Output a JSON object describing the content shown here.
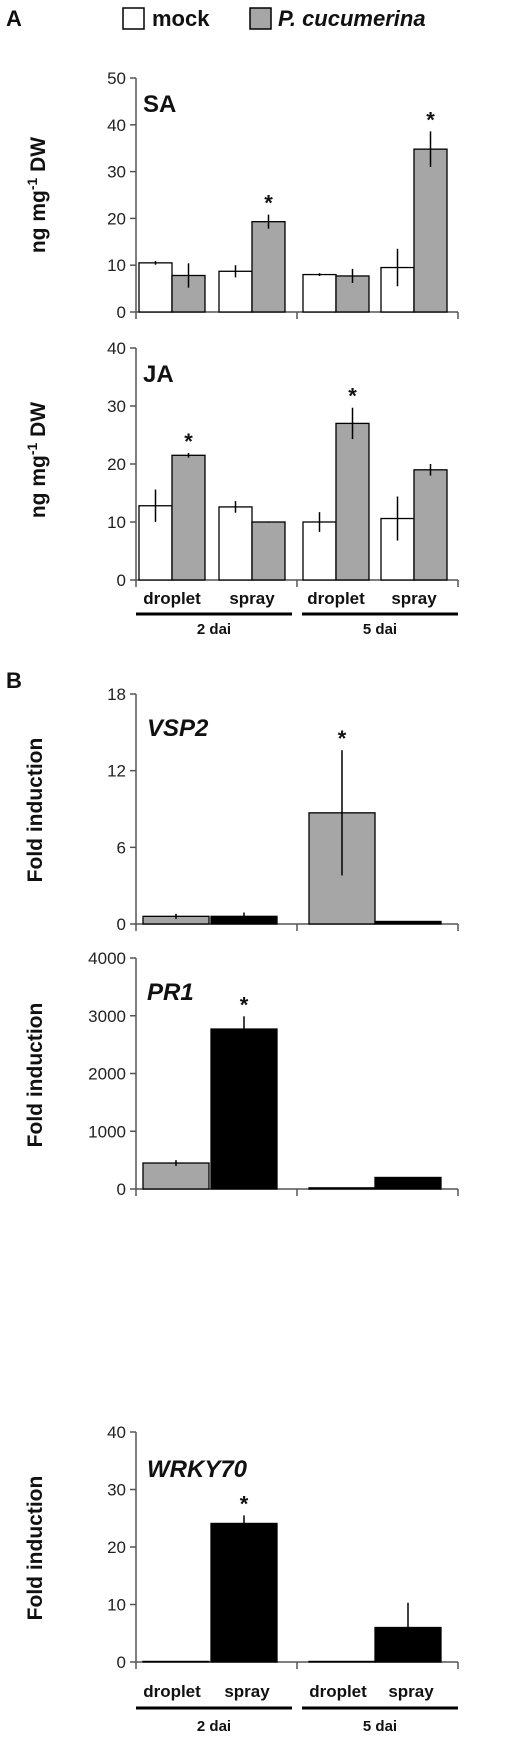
{
  "figure": {
    "panel_a": "A",
    "panel_b": "B",
    "legend": {
      "mock": "mock",
      "pathogen": "P. cucumerina"
    },
    "categories": [
      "droplet",
      "spray",
      "droplet",
      "spray"
    ],
    "groups": [
      "2 dai",
      "2 dai",
      "5 dai",
      "5 dai"
    ]
  },
  "chart_data": [
    {
      "type": "bar",
      "title": "SA",
      "ylabel": "ng mg-1 DW",
      "ylim": [
        0,
        50
      ],
      "yticks": [
        0,
        10,
        20,
        30,
        40,
        50
      ],
      "series": [
        {
          "name": "mock",
          "color": "#ffffff",
          "values": [
            10.5,
            8.7,
            8.0,
            9.5
          ],
          "errors": [
            0.4,
            1.3,
            0.3,
            4.0
          ]
        },
        {
          "name": "P. cucumerina",
          "color": "#a6a6a6",
          "values": [
            7.8,
            19.3,
            7.7,
            34.8
          ],
          "errors": [
            2.6,
            1.5,
            1.5,
            3.8
          ]
        }
      ],
      "significant": [
        [
          false,
          false,
          false,
          false
        ],
        [
          false,
          true,
          false,
          true
        ]
      ]
    },
    {
      "type": "bar",
      "title": "JA",
      "ylabel": "ng mg-1 DW",
      "ylim": [
        0,
        40
      ],
      "yticks": [
        0,
        10,
        20,
        30,
        40
      ],
      "series": [
        {
          "name": "mock",
          "color": "#ffffff",
          "values": [
            12.8,
            12.6,
            10.0,
            10.6
          ],
          "errors": [
            2.8,
            1.0,
            1.7,
            3.8
          ]
        },
        {
          "name": "P. cucumerina",
          "color": "#a6a6a6",
          "values": [
            21.5,
            10.0,
            27.0,
            19.0
          ],
          "errors": [
            0.4,
            0.1,
            2.7,
            1.0
          ]
        }
      ],
      "significant": [
        [
          false,
          false,
          false,
          false
        ],
        [
          true,
          false,
          true,
          false
        ]
      ]
    },
    {
      "type": "bar",
      "title": "VSP2",
      "ylabel": "Fold induction",
      "ylim": [
        0,
        18
      ],
      "yticks": [
        0,
        6,
        12,
        18
      ],
      "bars": [
        {
          "value": 0.6,
          "error": 0.2,
          "color": "#a6a6a6"
        },
        {
          "value": 0.6,
          "error": 0.3,
          "color": "#000000"
        },
        {
          "value": 8.7,
          "error": 4.9,
          "color": "#a6a6a6"
        },
        {
          "value": 0.2,
          "error": 0.0,
          "color": "#000000"
        }
      ],
      "significant": [
        false,
        false,
        true,
        false
      ]
    },
    {
      "type": "bar",
      "title": "PR1",
      "ylabel": "Fold induction",
      "ylim": [
        0,
        4000
      ],
      "yticks": [
        0,
        1000,
        2000,
        3000,
        4000
      ],
      "bars": [
        {
          "value": 450,
          "error": 50,
          "color": "#a6a6a6"
        },
        {
          "value": 2770,
          "error": 220,
          "color": "#000000"
        },
        {
          "value": 20,
          "error": 0,
          "color": "#a6a6a6"
        },
        {
          "value": 200,
          "error": 0,
          "color": "#000000"
        }
      ],
      "significant": [
        false,
        true,
        false,
        false
      ]
    },
    {
      "type": "bar",
      "title": "WRKY70",
      "ylabel": "Fold induction",
      "ylim": [
        0,
        40
      ],
      "yticks": [
        0,
        10,
        20,
        30,
        40
      ],
      "bars": [
        {
          "value": 0.1,
          "error": 0.0,
          "color": "#a6a6a6"
        },
        {
          "value": 24.1,
          "error": 1.4,
          "color": "#000000"
        },
        {
          "value": 0.1,
          "error": 0.0,
          "color": "#a6a6a6"
        },
        {
          "value": 6.0,
          "error": 4.3,
          "color": "#000000"
        }
      ],
      "significant": [
        false,
        true,
        false,
        false
      ]
    }
  ]
}
